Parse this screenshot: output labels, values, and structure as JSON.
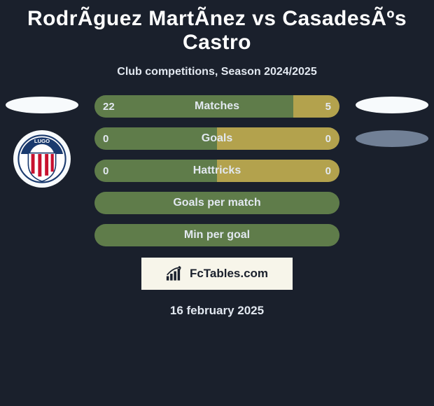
{
  "title": "RodrÃ­guez MartÃ­nez vs CasadesÃºs Castro",
  "subtitle": "Club competitions, Season 2024/2025",
  "colors": {
    "left_seg": "#5f7c4a",
    "right_seg": "#b3a24d",
    "single": "#5f7c4a",
    "pill_white": "#f7fafc",
    "pill_gray": "#718096",
    "bg": "#1a202c"
  },
  "bars": [
    {
      "label": "Matches",
      "left_val": "22",
      "right_val": "5",
      "left_pct": 81,
      "right_pct": 19,
      "type": "split"
    },
    {
      "label": "Goals",
      "left_val": "0",
      "right_val": "0",
      "left_pct": 50,
      "right_pct": 50,
      "type": "split"
    },
    {
      "label": "Hattricks",
      "left_val": "0",
      "right_val": "0",
      "left_pct": 50,
      "right_pct": 50,
      "type": "split"
    },
    {
      "label": "Goals per match",
      "type": "single"
    },
    {
      "label": "Min per goal",
      "type": "single"
    }
  ],
  "watermark": "FcTables.com",
  "date": "16 february 2025",
  "left_pills": [
    "white"
  ],
  "right_pills": [
    "white",
    "gray"
  ],
  "crest_text_top": "LUGO"
}
